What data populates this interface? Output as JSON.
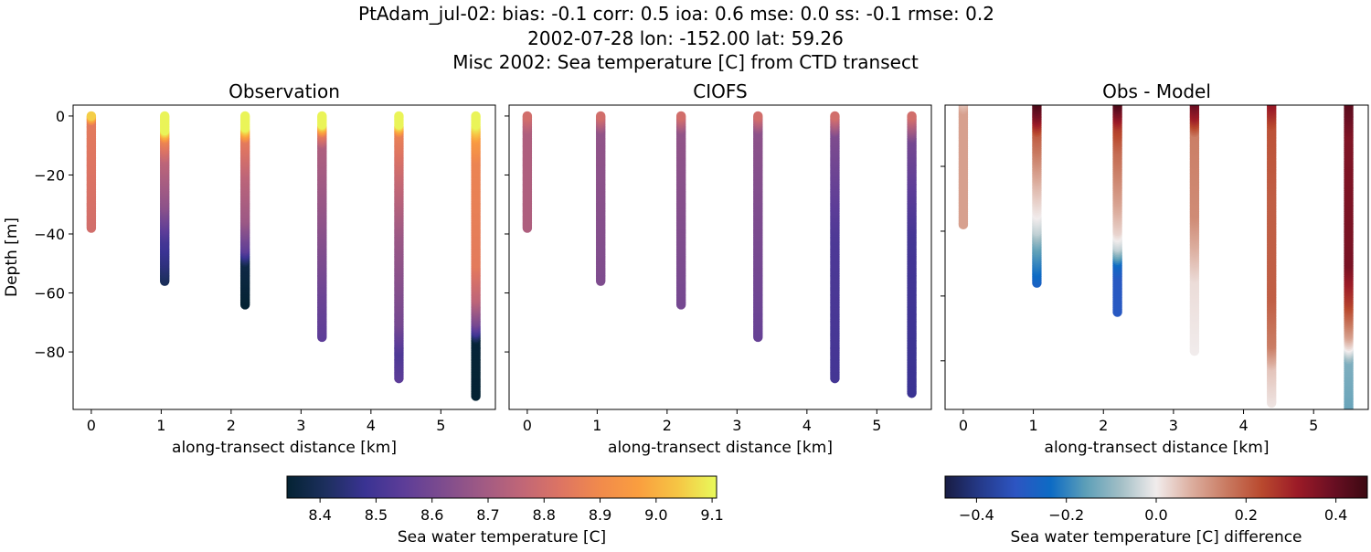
{
  "title_lines": [
    "PtAdam_jul-02: bias: -0.1  corr: 0.5  ioa: 0.6  mse: 0.0  ss: -0.1  rmse: 0.2",
    "2002-07-28 lon: -152.00 lat: 59.26",
    "Misc 2002: Sea temperature [C] from CTD transect"
  ],
  "chart_data": [
    {
      "type": "scatter",
      "title": "Observation",
      "xlabel": "along-transect distance [km]",
      "ylabel": "Depth [m]",
      "xlim": [
        -0.26,
        5.78
      ],
      "ylim": [
        -99.5,
        3.7
      ],
      "xticks": [
        "0",
        "1",
        "2",
        "3",
        "4",
        "5"
      ],
      "yticks": [
        "0",
        "−20",
        "−40",
        "−60",
        "−80"
      ],
      "colormap": "thermal",
      "stations": [
        {
          "x": 0,
          "profile": [
            [
              0,
              9.05
            ],
            [
              2,
              8.85
            ],
            [
              38,
              8.8
            ]
          ]
        },
        {
          "x": 1.05,
          "profile": [
            [
              0,
              9.1
            ],
            [
              5,
              9.1
            ],
            [
              8,
              8.88
            ],
            [
              15,
              8.75
            ],
            [
              30,
              8.65
            ],
            [
              42,
              8.5
            ],
            [
              50,
              8.45
            ],
            [
              56,
              8.4
            ]
          ]
        },
        {
          "x": 2.2,
          "profile": [
            [
              0,
              9.1
            ],
            [
              4,
              9.1
            ],
            [
              8,
              8.85
            ],
            [
              20,
              8.75
            ],
            [
              35,
              8.68
            ],
            [
              45,
              8.55
            ],
            [
              50,
              8.37
            ],
            [
              64,
              8.34
            ]
          ]
        },
        {
          "x": 3.3,
          "profile": [
            [
              0,
              9.1
            ],
            [
              3,
              9.1
            ],
            [
              6,
              8.85
            ],
            [
              10,
              8.72
            ],
            [
              30,
              8.67
            ],
            [
              60,
              8.58
            ],
            [
              75,
              8.55
            ]
          ]
        },
        {
          "x": 4.4,
          "profile": [
            [
              0,
              9.1
            ],
            [
              3,
              9.1
            ],
            [
              6,
              8.87
            ],
            [
              20,
              8.78
            ],
            [
              40,
              8.68
            ],
            [
              70,
              8.6
            ],
            [
              80,
              8.52
            ],
            [
              89,
              8.55
            ]
          ]
        },
        {
          "x": 5.5,
          "profile": [
            [
              0,
              9.1
            ],
            [
              3,
              9.1
            ],
            [
              8,
              8.95
            ],
            [
              15,
              8.88
            ],
            [
              50,
              8.85
            ],
            [
              62,
              8.75
            ],
            [
              70,
              8.6
            ],
            [
              73,
              8.5
            ],
            [
              76,
              8.35
            ],
            [
              95,
              8.34
            ]
          ]
        }
      ]
    },
    {
      "type": "scatter",
      "title": "CIOFS",
      "xlabel": "along-transect distance [km]",
      "xlim": [
        -0.26,
        5.78
      ],
      "ylim": [
        -99.5,
        3.7
      ],
      "xticks": [
        "0",
        "1",
        "2",
        "3",
        "4",
        "5"
      ],
      "colormap": "thermal",
      "stations": [
        {
          "x": 0,
          "profile": [
            [
              0,
              8.8
            ],
            [
              5,
              8.72
            ],
            [
              38,
              8.72
            ]
          ]
        },
        {
          "x": 1.05,
          "profile": [
            [
              0,
              8.8
            ],
            [
              5,
              8.66
            ],
            [
              56,
              8.62
            ]
          ]
        },
        {
          "x": 2.2,
          "profile": [
            [
              0,
              8.8
            ],
            [
              5,
              8.66
            ],
            [
              64,
              8.6
            ]
          ]
        },
        {
          "x": 3.3,
          "profile": [
            [
              0,
              8.8
            ],
            [
              5,
              8.65
            ],
            [
              75,
              8.57
            ]
          ]
        },
        {
          "x": 4.4,
          "profile": [
            [
              0,
              8.8
            ],
            [
              6,
              8.62
            ],
            [
              40,
              8.52
            ],
            [
              89,
              8.5
            ]
          ]
        },
        {
          "x": 5.5,
          "profile": [
            [
              0,
              8.8
            ],
            [
              8,
              8.6
            ],
            [
              40,
              8.5
            ],
            [
              94,
              8.48
            ]
          ]
        }
      ]
    },
    {
      "type": "scatter",
      "title": "Obs - Model",
      "xlabel": "along-transect distance [km]",
      "xlim": [
        -0.26,
        5.78
      ],
      "ylim": [
        -95,
        -1.1
      ],
      "xticks": [
        "0",
        "1",
        "2",
        "3",
        "4",
        "5"
      ],
      "colormap": "balance",
      "stations": [
        {
          "x": 0,
          "profile": [
            [
              0,
              0.05
            ],
            [
              3,
              0.1
            ],
            [
              38,
              0.1
            ]
          ]
        },
        {
          "x": 1.05,
          "profile": [
            [
              0,
              0.45
            ],
            [
              5,
              0.35
            ],
            [
              10,
              0.2
            ],
            [
              25,
              0.07
            ],
            [
              35,
              0
            ],
            [
              40,
              -0.05
            ],
            [
              45,
              -0.15
            ],
            [
              56,
              -0.27
            ]
          ]
        },
        {
          "x": 2.2,
          "profile": [
            [
              0,
              0.45
            ],
            [
              8,
              0.25
            ],
            [
              15,
              0.18
            ],
            [
              30,
              0.1
            ],
            [
              40,
              0.03
            ],
            [
              45,
              -0.05
            ],
            [
              50,
              -0.25
            ],
            [
              54,
              -0.3
            ],
            [
              65,
              -0.3
            ]
          ]
        },
        {
          "x": 3.3,
          "profile": [
            [
              0,
              0.4
            ],
            [
              5,
              0.3
            ],
            [
              10,
              0.15
            ],
            [
              35,
              0.13
            ],
            [
              55,
              0.02
            ],
            [
              77,
              0.0
            ]
          ]
        },
        {
          "x": 4.4,
          "profile": [
            [
              0,
              0.33
            ],
            [
              8,
              0.22
            ],
            [
              30,
              0.2
            ],
            [
              60,
              0.2
            ],
            [
              75,
              0.15
            ],
            [
              82,
              0.05
            ],
            [
              93,
              0.01
            ]
          ]
        },
        {
          "x": 5.5,
          "profile": [
            [
              0,
              0.42
            ],
            [
              10,
              0.36
            ],
            [
              50,
              0.37
            ],
            [
              62,
              0.25
            ],
            [
              72,
              0.1
            ],
            [
              76,
              0
            ],
            [
              80,
              -0.12
            ],
            [
              98,
              -0.15
            ]
          ]
        }
      ]
    }
  ],
  "colorbars": [
    {
      "label": "Sea water temperature [C]",
      "range": [
        8.341,
        9.108
      ],
      "ticks": [
        "8.4",
        "8.5",
        "8.6",
        "8.7",
        "8.8",
        "8.9",
        "9.0",
        "9.1"
      ],
      "colormap": "thermal"
    },
    {
      "label": "Sea water temperature [C] difference",
      "range": [
        -0.47,
        0.47
      ],
      "ticks": [
        "−0.4",
        "−0.2",
        "0.0",
        "0.2",
        "0.4"
      ],
      "colormap": "balance"
    }
  ],
  "colormaps": {
    "thermal": [
      "#042333",
      "#1d2f5e",
      "#3a3393",
      "#5d3d98",
      "#7e4c8e",
      "#a05a84",
      "#c06677",
      "#dd7463",
      "#f18a4c",
      "#fa9e3f",
      "#f6c544",
      "#e8fa5b"
    ],
    "balance": [
      "#181c43",
      "#253a8a",
      "#2d55c2",
      "#0d6bc4",
      "#5d9fb8",
      "#a3bfc6",
      "#f1ecec",
      "#dcae9f",
      "#c97a61",
      "#b9492e",
      "#9c1b27",
      "#6b0f23",
      "#3c0912"
    ]
  }
}
